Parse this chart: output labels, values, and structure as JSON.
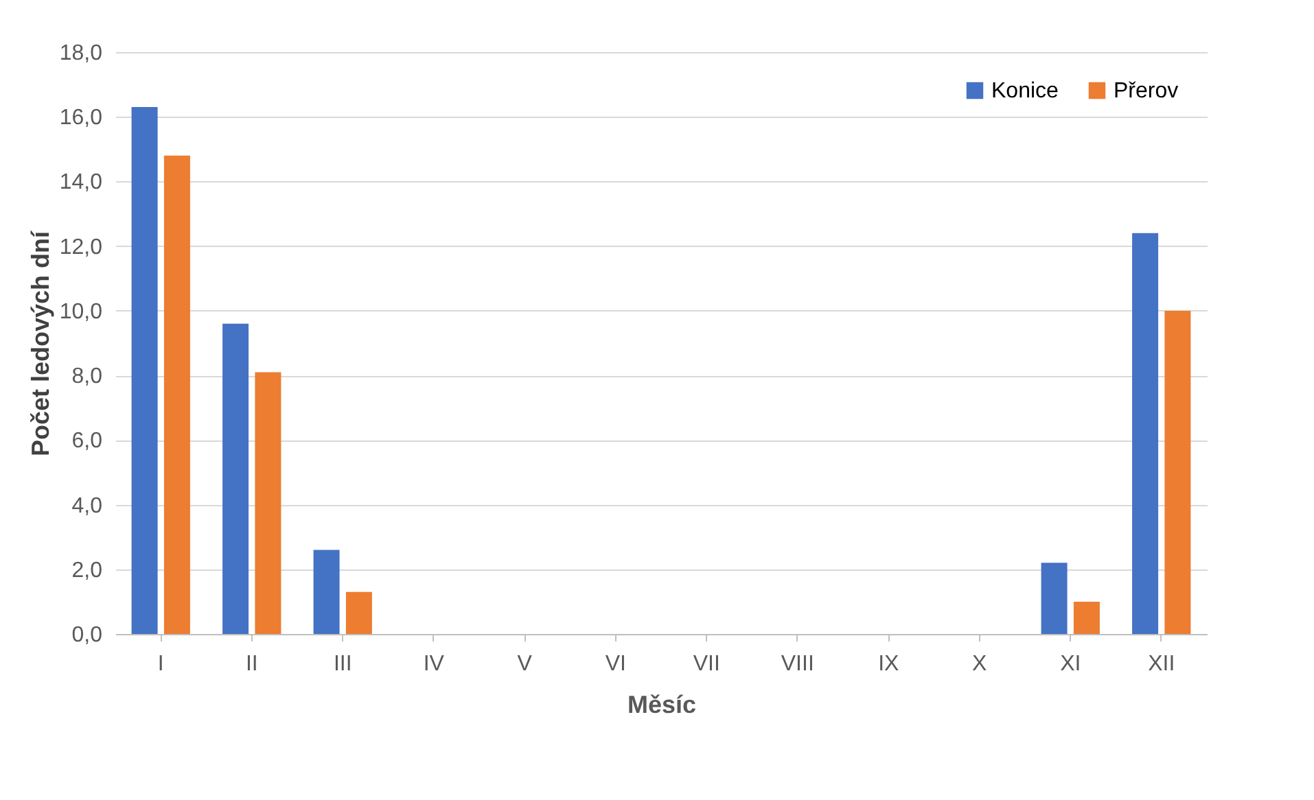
{
  "chart_data": {
    "type": "bar",
    "xlabel": "Měsíc",
    "ylabel": "Počet ledových dní",
    "categories": [
      "I",
      "II",
      "III",
      "IV",
      "V",
      "VI",
      "VII",
      "VIII",
      "IX",
      "X",
      "XI",
      "XII"
    ],
    "series": [
      {
        "name": "Konice",
        "color": "#4472c4",
        "values": [
          16.3,
          9.6,
          2.6,
          0,
          0,
          0,
          0,
          0,
          0,
          0,
          2.2,
          12.4
        ]
      },
      {
        "name": "Přerov",
        "color": "#ed7d31",
        "values": [
          14.8,
          8.1,
          1.3,
          0,
          0,
          0,
          0,
          0,
          0,
          0,
          1.0,
          10.0
        ]
      }
    ],
    "ylim": [
      0,
      18
    ],
    "yticks": [
      {
        "value": 0,
        "label": "0,0"
      },
      {
        "value": 2,
        "label": "2,0"
      },
      {
        "value": 4,
        "label": "4,0"
      },
      {
        "value": 6,
        "label": "6,0"
      },
      {
        "value": 8,
        "label": "8,0"
      },
      {
        "value": 10,
        "label": "10,0"
      },
      {
        "value": 12,
        "label": "12,0"
      },
      {
        "value": 14,
        "label": "14,0"
      },
      {
        "value": 16,
        "label": "16,0"
      },
      {
        "value": 18,
        "label": "18,0"
      }
    ],
    "grid": "y",
    "legend": "top right"
  }
}
